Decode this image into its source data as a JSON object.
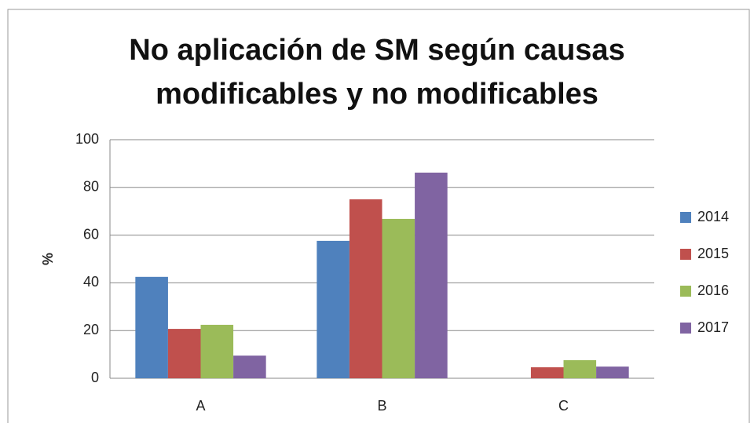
{
  "chart_data": {
    "type": "bar",
    "title": "No aplicación de SM según causas modificables y no modificables",
    "y_label": "%",
    "categories": [
      "A",
      "B",
      "C"
    ],
    "series": [
      {
        "name": "2014",
        "color": "#4f81bd",
        "values": [
          42.5,
          57.6,
          0
        ]
      },
      {
        "name": "2015",
        "color": "#c0504d",
        "values": [
          20.7,
          75,
          4.6
        ]
      },
      {
        "name": "2016",
        "color": "#9bbb59",
        "values": [
          22.4,
          66.8,
          7.6
        ]
      },
      {
        "name": "2017",
        "color": "#8064a2",
        "values": [
          9.5,
          86.2,
          4.9
        ]
      }
    ],
    "ylim": [
      0,
      100
    ],
    "yticks": [
      0,
      20,
      40,
      60,
      80,
      100
    ],
    "grid": true,
    "legend": "right"
  }
}
